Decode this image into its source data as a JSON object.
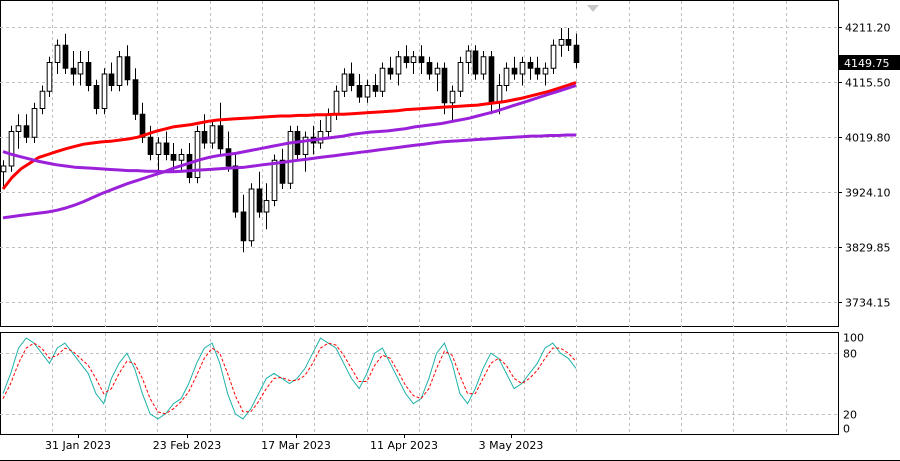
{
  "chart_data": [
    {
      "type": "candlestick",
      "title": "",
      "ylim": [
        3690,
        4250
      ],
      "grid": true,
      "y_ticks": [
        "4211.20",
        "4115.50",
        "4019.80",
        "3924.10",
        "3829.85",
        "3734.15"
      ],
      "last_price": "4149.75",
      "x_labels": [
        "31 Jan 2023",
        "23 Feb 2023",
        "17 Mar 2023",
        "11 Apr 2023",
        "3 May 2023"
      ],
      "candles": [
        [
          3960,
          3980,
          3930,
          3970
        ],
        [
          3970,
          4040,
          3960,
          4030
        ],
        [
          4030,
          4060,
          4000,
          4040
        ],
        [
          4040,
          4060,
          4010,
          4020
        ],
        [
          4020,
          4080,
          4010,
          4070
        ],
        [
          4070,
          4110,
          4060,
          4100
        ],
        [
          4100,
          4160,
          4090,
          4150
        ],
        [
          4150,
          4190,
          4130,
          4180
        ],
        [
          4180,
          4200,
          4130,
          4140
        ],
        [
          4140,
          4170,
          4110,
          4130
        ],
        [
          4130,
          4170,
          4110,
          4150
        ],
        [
          4150,
          4170,
          4100,
          4110
        ],
        [
          4110,
          4120,
          4060,
          4070
        ],
        [
          4070,
          4140,
          4060,
          4130
        ],
        [
          4130,
          4150,
          4100,
          4110
        ],
        [
          4110,
          4170,
          4100,
          4160
        ],
        [
          4160,
          4180,
          4110,
          4120
        ],
        [
          4120,
          4140,
          4050,
          4060
        ],
        [
          4060,
          4080,
          4010,
          4020
        ],
        [
          4020,
          4040,
          3980,
          3990
        ],
        [
          3990,
          4020,
          3960,
          4010
        ],
        [
          4010,
          4030,
          3980,
          3990
        ],
        [
          3990,
          4010,
          3960,
          3980
        ],
        [
          3980,
          4000,
          3960,
          3990
        ],
        [
          3990,
          4010,
          3940,
          3950
        ],
        [
          3950,
          4040,
          3940,
          4030
        ],
        [
          4030,
          4060,
          4000,
          4010
        ],
        [
          4010,
          4050,
          4000,
          4040
        ],
        [
          4040,
          4080,
          3990,
          4000
        ],
        [
          4000,
          4030,
          3960,
          3970
        ],
        [
          3970,
          3990,
          3880,
          3890
        ],
        [
          3890,
          3920,
          3820,
          3840
        ],
        [
          3840,
          3940,
          3830,
          3930
        ],
        [
          3930,
          3960,
          3880,
          3890
        ],
        [
          3890,
          3940,
          3860,
          3910
        ],
        [
          3910,
          3990,
          3900,
          3980
        ],
        [
          3980,
          4000,
          3930,
          3940
        ],
        [
          3940,
          4040,
          3930,
          4030
        ],
        [
          4030,
          4040,
          3980,
          3990
        ],
        [
          3990,
          4030,
          3960,
          4020
        ],
        [
          4020,
          4040,
          3990,
          4010
        ],
        [
          4010,
          4050,
          4000,
          4030
        ],
        [
          4030,
          4070,
          4020,
          4060
        ],
        [
          4060,
          4110,
          4050,
          4100
        ],
        [
          4100,
          4140,
          4090,
          4130
        ],
        [
          4130,
          4150,
          4100,
          4110
        ],
        [
          4110,
          4130,
          4080,
          4090
        ],
        [
          4090,
          4120,
          4080,
          4110
        ],
        [
          4110,
          4130,
          4090,
          4100
        ],
        [
          4100,
          4150,
          4090,
          4140
        ],
        [
          4140,
          4160,
          4120,
          4130
        ],
        [
          4130,
          4170,
          4110,
          4160
        ],
        [
          4160,
          4180,
          4140,
          4150
        ],
        [
          4150,
          4170,
          4130,
          4160
        ],
        [
          4160,
          4180,
          4130,
          4150
        ],
        [
          4150,
          4160,
          4120,
          4130
        ],
        [
          4130,
          4150,
          4100,
          4140
        ],
        [
          4140,
          4150,
          4060,
          4080
        ],
        [
          4080,
          4110,
          4050,
          4100
        ],
        [
          4100,
          4160,
          4090,
          4150
        ],
        [
          4150,
          4180,
          4130,
          4170
        ],
        [
          4170,
          4180,
          4120,
          4130
        ],
        [
          4130,
          4170,
          4120,
          4160
        ],
        [
          4160,
          4170,
          4060,
          4080
        ],
        [
          4080,
          4130,
          4060,
          4110
        ],
        [
          4110,
          4150,
          4100,
          4140
        ],
        [
          4140,
          4160,
          4120,
          4130
        ],
        [
          4130,
          4160,
          4110,
          4150
        ],
        [
          4150,
          4160,
          4120,
          4140
        ],
        [
          4140,
          4160,
          4120,
          4130
        ],
        [
          4130,
          4150,
          4110,
          4140
        ],
        [
          4140,
          4190,
          4130,
          4180
        ],
        [
          4180,
          4210,
          4160,
          4190
        ],
        [
          4190,
          4210,
          4170,
          4180
        ],
        [
          4180,
          4200,
          4140,
          4150
        ]
      ],
      "series": [
        {
          "color": "#ff0000",
          "values": [
            3930,
            3950,
            3965,
            3975,
            3985,
            3990,
            3995,
            4000,
            4004,
            4008,
            4010,
            4012,
            4013,
            4015,
            4017,
            4020,
            4025,
            4030,
            4034,
            4038,
            4040,
            4042,
            4045,
            4048,
            4050,
            4051,
            4052,
            4053,
            4054,
            4055,
            4056,
            4057,
            4057,
            4058,
            4058,
            4059,
            4059,
            4060,
            4060,
            4061,
            4062,
            4063,
            4064,
            4065,
            4066,
            4068,
            4069,
            4070,
            4071,
            4072,
            4073,
            4074,
            4075,
            4076,
            4078,
            4080,
            4082,
            4085,
            4088,
            4092,
            4096,
            4100,
            4105,
            4110,
            4115
          ]
        },
        {
          "color": "#9a21d9",
          "values": [
            3880,
            3882,
            3884,
            3886,
            3888,
            3890,
            3893,
            3897,
            3902,
            3908,
            3915,
            3922,
            3928,
            3934,
            3940,
            3945,
            3950,
            3955,
            3960,
            3966,
            3971,
            3976,
            3981,
            3985,
            3988,
            3990,
            3992,
            3995,
            3998,
            4001,
            4004,
            4007,
            4010,
            4012,
            4014,
            4016,
            4018,
            4020,
            4022,
            4025,
            4027,
            4029,
            4030,
            4031,
            4033,
            4035,
            4038,
            4040,
            4042,
            4044,
            4047,
            4050,
            4053,
            4057,
            4061,
            4065,
            4070,
            4075,
            4080,
            4085,
            4090,
            4095,
            4100,
            4105,
            4110
          ]
        },
        {
          "color": "#9a21d9",
          "values": [
            3995,
            3990,
            3986,
            3982,
            3978,
            3975,
            3972,
            3970,
            3968,
            3967,
            3966,
            3965,
            3964,
            3963,
            3962,
            3962,
            3961,
            3961,
            3960,
            3960,
            3961,
            3962,
            3963,
            3964,
            3965,
            3966,
            3967,
            3968,
            3970,
            3972,
            3974,
            3976,
            3978,
            3980,
            3982,
            3984,
            3986,
            3988,
            3990,
            3992,
            3994,
            3996,
            3998,
            4000,
            4002,
            4004,
            4006,
            4008,
            4010,
            4012,
            4013,
            4014,
            4015,
            4016,
            4017,
            4018,
            4019,
            4020,
            4021,
            4022,
            4022,
            4023,
            4023,
            4024,
            4024
          ]
        }
      ]
    },
    {
      "type": "line",
      "title": "",
      "ylim": [
        0,
        100
      ],
      "y_ticks": [
        "100",
        "80",
        "20",
        "0"
      ],
      "series": [
        {
          "color": "#20b2aa",
          "values": [
            40,
            60,
            85,
            95,
            90,
            80,
            70,
            85,
            90,
            80,
            70,
            60,
            40,
            30,
            55,
            70,
            80,
            65,
            40,
            20,
            15,
            20,
            30,
            35,
            50,
            70,
            85,
            90,
            70,
            40,
            20,
            15,
            25,
            40,
            55,
            60,
            55,
            50,
            55,
            65,
            80,
            95,
            90,
            85,
            70,
            55,
            45,
            60,
            80,
            85,
            70,
            55,
            40,
            30,
            35,
            55,
            80,
            90,
            70,
            40,
            30,
            45,
            65,
            80,
            75,
            60,
            45,
            50,
            60,
            70,
            85,
            90,
            80,
            75,
            65
          ]
        },
        {
          "color": "#ff0000",
          "values": [
            35,
            50,
            70,
            85,
            90,
            85,
            75,
            78,
            85,
            82,
            75,
            68,
            55,
            40,
            45,
            60,
            72,
            70,
            55,
            35,
            22,
            20,
            25,
            32,
            42,
            58,
            75,
            85,
            80,
            60,
            38,
            22,
            22,
            32,
            45,
            55,
            56,
            53,
            53,
            58,
            70,
            85,
            90,
            88,
            78,
            65,
            52,
            52,
            68,
            78,
            75,
            62,
            48,
            38,
            35,
            45,
            65,
            82,
            78,
            58,
            40,
            40,
            55,
            70,
            75,
            68,
            55,
            50,
            55,
            63,
            75,
            85,
            85,
            80,
            72
          ]
        }
      ]
    }
  ]
}
